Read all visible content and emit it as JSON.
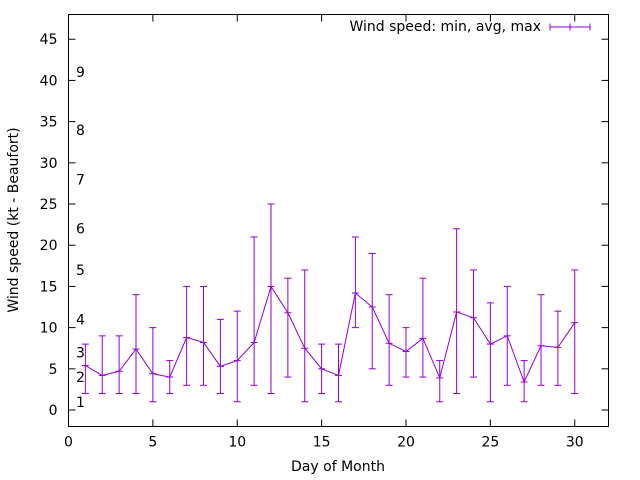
{
  "chart_data": {
    "type": "line",
    "title": "",
    "xlabel": "Day of Month",
    "ylabel": "Wind speed (kt - Beaufort)",
    "xlim": [
      0,
      32
    ],
    "ylim": [
      -2,
      48
    ],
    "x_ticks": [
      0,
      5,
      10,
      15,
      20,
      25,
      30
    ],
    "y_ticks": [
      0,
      5,
      10,
      15,
      20,
      25,
      30,
      35,
      40,
      45
    ],
    "grid": false,
    "legend_position": "top-right",
    "series_color": "#9400d3",
    "beaufort_scale": [
      {
        "label": "1",
        "kt": 1
      },
      {
        "label": "2",
        "kt": 4
      },
      {
        "label": "3",
        "kt": 7
      },
      {
        "label": "4",
        "kt": 11
      },
      {
        "label": "5",
        "kt": 17
      },
      {
        "label": "6",
        "kt": 22
      },
      {
        "label": "7",
        "kt": 28
      },
      {
        "label": "8",
        "kt": 34
      },
      {
        "label": "9",
        "kt": 41
      }
    ],
    "series": [
      {
        "name": "Wind speed: min, avg, max",
        "x": [
          1,
          2,
          3,
          4,
          5,
          6,
          7,
          8,
          9,
          10,
          11,
          12,
          13,
          14,
          15,
          16,
          17,
          18,
          19,
          20,
          21,
          22,
          23,
          24,
          25,
          26,
          27,
          28,
          29,
          30
        ],
        "avg": [
          5.4,
          4.2,
          4.7,
          7.4,
          4.4,
          4.0,
          8.8,
          8.2,
          5.3,
          6.0,
          8.2,
          15.0,
          11.8,
          7.5,
          5.0,
          4.2,
          14.2,
          12.5,
          8.1,
          7.1,
          8.7,
          3.9,
          11.9,
          11.2,
          8.0,
          9.0,
          3.4,
          7.8,
          7.6,
          10.6
        ],
        "min": [
          2,
          2,
          2,
          2,
          1,
          2,
          3,
          3,
          2,
          1,
          3,
          2,
          4,
          1,
          2,
          1,
          10,
          5,
          3,
          4,
          4,
          1,
          2,
          4,
          1,
          3,
          1,
          3,
          3,
          2
        ],
        "max": [
          8,
          9,
          9,
          14,
          10,
          6,
          15,
          15,
          11,
          12,
          21,
          25,
          16,
          17,
          8,
          8,
          21,
          19,
          14,
          10,
          16,
          6,
          22,
          17,
          13,
          15,
          6,
          14,
          12,
          17
        ]
      }
    ]
  }
}
